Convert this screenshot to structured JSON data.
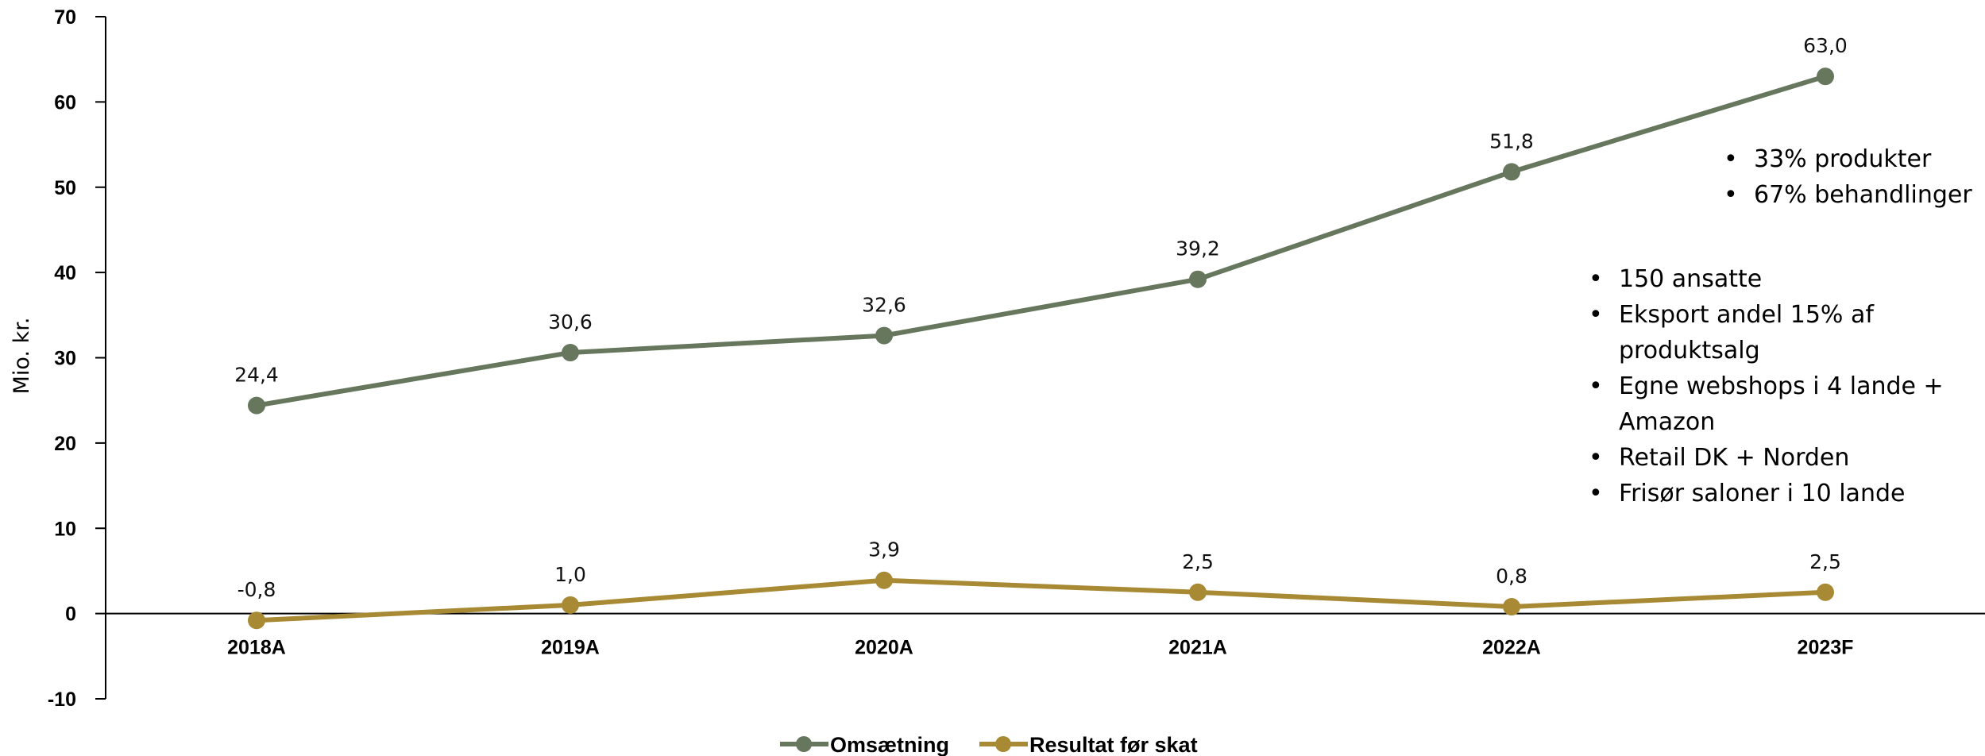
{
  "chart_data": {
    "type": "line",
    "categories": [
      "2018A",
      "2019A",
      "2020A",
      "2021A",
      "2022A",
      "2023F"
    ],
    "series": [
      {
        "name": "Omsætning",
        "values": [
          24.4,
          30.6,
          32.6,
          39.2,
          51.8,
          63.0
        ],
        "labels": [
          "24,4",
          "30,6",
          "32,6",
          "39,2",
          "51,8",
          "63,0"
        ],
        "color": "#66775e"
      },
      {
        "name": "Resultat før skat",
        "values": [
          -0.8,
          1.0,
          3.9,
          2.5,
          0.8,
          2.5
        ],
        "labels": [
          "-0,8",
          "1,0",
          "3,9",
          "2,5",
          "0,8",
          "2,5"
        ],
        "color": "#a88a34"
      }
    ],
    "ylabel": "Mio. kr.",
    "ylim": [
      -10,
      70
    ],
    "yticks": [
      -10,
      0,
      10,
      20,
      30,
      40,
      50,
      60,
      70
    ],
    "grid": false,
    "legend": "bottom"
  },
  "notes": {
    "top": [
      "33% produkter",
      "67% behandlinger"
    ],
    "bottom": [
      "150 ansatte",
      "Eksport andel 15% af produktsalg",
      "Egne webshops i 4 lande + Amazon",
      "Retail DK + Norden",
      "Frisør saloner i 10 lande"
    ]
  }
}
